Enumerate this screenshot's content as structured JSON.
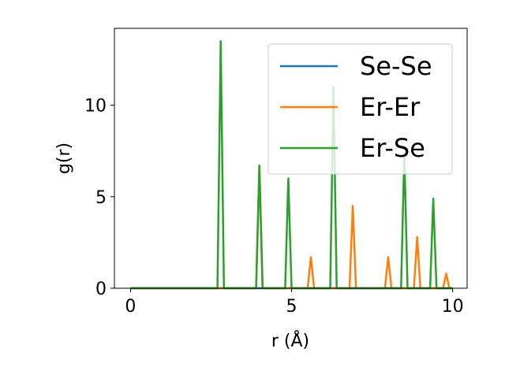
{
  "chart_data": {
    "type": "line",
    "title": "",
    "xlabel": "r (Å)",
    "ylabel": "g(r)",
    "xlim": [
      -0.5,
      10.45
    ],
    "ylim": [
      0,
      14.2
    ],
    "xticks": [
      0,
      5,
      10
    ],
    "yticks": [
      0,
      5,
      10
    ],
    "grid": false,
    "legend": {
      "placement": "top-right"
    },
    "series": [
      {
        "name": "Se-Se",
        "color": "#1f77b4",
        "x": [
          0,
          10
        ],
        "y": [
          0,
          0
        ]
      },
      {
        "name": "Er-Er",
        "color": "#ff7f0e",
        "x": [
          0,
          3.9,
          4.0,
          4.1,
          5.5,
          5.6,
          5.7,
          6.8,
          6.9,
          7.0,
          7.9,
          8.0,
          8.1,
          8.8,
          8.9,
          9.0,
          9.7,
          9.8,
          9.9,
          10.0
        ],
        "y": [
          0,
          0,
          6.7,
          0,
          0,
          1.7,
          0,
          0,
          4.5,
          0,
          0,
          1.7,
          0,
          0,
          2.8,
          0,
          0,
          0.8,
          0,
          0
        ]
      },
      {
        "name": "Er-Se",
        "color": "#2ca02c",
        "x": [
          0,
          2.7,
          2.8,
          2.9,
          3.9,
          4.0,
          4.1,
          4.8,
          4.9,
          5.0,
          6.2,
          6.3,
          6.4,
          8.4,
          8.5,
          8.6,
          9.3,
          9.4,
          9.5,
          10.0
        ],
        "y": [
          0,
          0,
          13.5,
          0,
          0,
          6.7,
          0,
          0,
          6.0,
          0,
          0,
          11.0,
          0,
          0,
          7.4,
          0,
          0,
          4.9,
          0,
          0
        ]
      }
    ]
  }
}
